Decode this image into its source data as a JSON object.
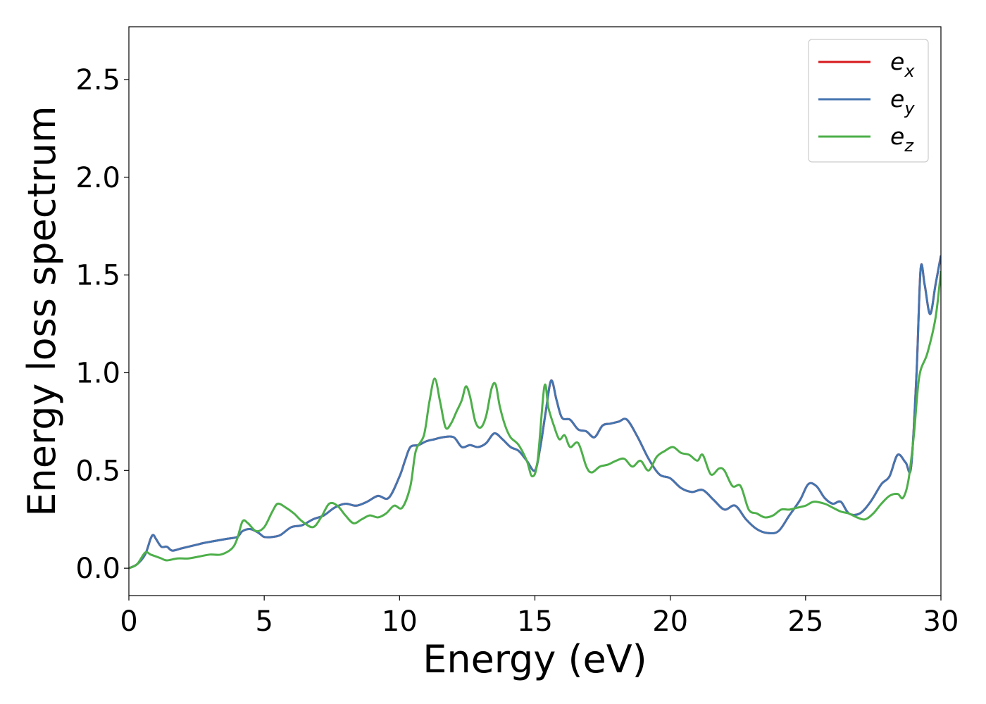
{
  "chart_data": {
    "type": "line",
    "title": "",
    "xlabel": "Energy (eV)",
    "ylabel": "Energy loss spectrum",
    "xlim": [
      0,
      30
    ],
    "ylim": [
      -0.14,
      2.77
    ],
    "xticks": [
      0,
      5,
      10,
      15,
      20,
      25,
      30
    ],
    "xtick_labels": [
      "0",
      "5",
      "10",
      "15",
      "20",
      "25",
      "30"
    ],
    "yticks": [
      0.0,
      0.5,
      1.0,
      1.5,
      2.0,
      2.5
    ],
    "ytick_labels": [
      "0.0",
      "0.5",
      "1.0",
      "1.5",
      "2.0",
      "2.5"
    ],
    "grid": false,
    "legend_position": "top-right",
    "legend": [
      {
        "main": "e",
        "sub": "x",
        "color": "#d7191c"
      },
      {
        "main": "e",
        "sub": "y",
        "color": "#4475b0"
      },
      {
        "main": "e",
        "sub": "z",
        "color": "#4daf4a"
      }
    ],
    "series": [
      {
        "name": "e_x",
        "color": "#d7191c",
        "x": [
          0,
          0.3,
          0.6,
          0.8,
          0.9,
          1.0,
          1.2,
          1.4,
          1.6,
          1.9,
          2.2,
          2.5,
          2.8,
          3.2,
          3.6,
          4.0,
          4.2,
          4.5,
          4.8,
          5.0,
          5.3,
          5.6,
          6.0,
          6.4,
          6.8,
          7.2,
          7.6,
          8.0,
          8.4,
          8.8,
          9.2,
          9.6,
          10.0,
          10.2,
          10.4,
          10.7,
          11.0,
          11.3,
          11.6,
          12.0,
          12.3,
          12.6,
          12.9,
          13.2,
          13.5,
          13.8,
          14.1,
          14.4,
          14.7,
          15.0,
          15.2,
          15.4,
          15.6,
          15.8,
          16.0,
          16.3,
          16.6,
          16.9,
          17.2,
          17.5,
          17.8,
          18.1,
          18.4,
          18.8,
          19.2,
          19.6,
          20.0,
          20.4,
          20.8,
          21.2,
          21.6,
          22.0,
          22.4,
          22.8,
          23.2,
          23.6,
          24.0,
          24.4,
          24.8,
          25.1,
          25.4,
          25.7,
          26.0,
          26.3,
          26.6,
          27.0,
          27.4,
          27.8,
          28.1,
          28.4,
          28.7,
          28.9,
          29.1,
          29.25,
          29.4,
          29.6,
          29.8,
          30.0
        ],
        "y": [
          0.0,
          0.02,
          0.07,
          0.15,
          0.17,
          0.15,
          0.11,
          0.11,
          0.09,
          0.1,
          0.11,
          0.12,
          0.13,
          0.14,
          0.15,
          0.16,
          0.19,
          0.2,
          0.18,
          0.16,
          0.16,
          0.17,
          0.21,
          0.22,
          0.25,
          0.27,
          0.31,
          0.33,
          0.32,
          0.34,
          0.37,
          0.36,
          0.47,
          0.55,
          0.62,
          0.63,
          0.65,
          0.66,
          0.67,
          0.67,
          0.62,
          0.63,
          0.62,
          0.64,
          0.69,
          0.66,
          0.62,
          0.6,
          0.55,
          0.5,
          0.62,
          0.8,
          0.96,
          0.86,
          0.77,
          0.76,
          0.71,
          0.7,
          0.67,
          0.73,
          0.74,
          0.75,
          0.76,
          0.67,
          0.56,
          0.48,
          0.46,
          0.41,
          0.39,
          0.4,
          0.35,
          0.3,
          0.32,
          0.25,
          0.2,
          0.18,
          0.19,
          0.27,
          0.35,
          0.43,
          0.42,
          0.36,
          0.33,
          0.34,
          0.28,
          0.28,
          0.34,
          0.43,
          0.47,
          0.58,
          0.54,
          0.52,
          1.0,
          1.53,
          1.45,
          1.3,
          1.45,
          1.6
        ]
      },
      {
        "name": "e_y",
        "color": "#4475b0",
        "x": [
          0,
          0.3,
          0.6,
          0.8,
          0.9,
          1.0,
          1.2,
          1.4,
          1.6,
          1.9,
          2.2,
          2.5,
          2.8,
          3.2,
          3.6,
          4.0,
          4.2,
          4.5,
          4.8,
          5.0,
          5.3,
          5.6,
          6.0,
          6.4,
          6.8,
          7.2,
          7.6,
          8.0,
          8.4,
          8.8,
          9.2,
          9.6,
          10.0,
          10.2,
          10.4,
          10.7,
          11.0,
          11.3,
          11.6,
          12.0,
          12.3,
          12.6,
          12.9,
          13.2,
          13.5,
          13.8,
          14.1,
          14.4,
          14.7,
          15.0,
          15.2,
          15.4,
          15.6,
          15.8,
          16.0,
          16.3,
          16.6,
          16.9,
          17.2,
          17.5,
          17.8,
          18.1,
          18.4,
          18.8,
          19.2,
          19.6,
          20.0,
          20.4,
          20.8,
          21.2,
          21.6,
          22.0,
          22.4,
          22.8,
          23.2,
          23.6,
          24.0,
          24.4,
          24.8,
          25.1,
          25.4,
          25.7,
          26.0,
          26.3,
          26.6,
          27.0,
          27.4,
          27.8,
          28.1,
          28.4,
          28.7,
          28.9,
          29.1,
          29.25,
          29.4,
          29.6,
          29.8,
          30.0
        ],
        "y": [
          0.0,
          0.02,
          0.07,
          0.15,
          0.17,
          0.15,
          0.11,
          0.11,
          0.09,
          0.1,
          0.11,
          0.12,
          0.13,
          0.14,
          0.15,
          0.16,
          0.19,
          0.2,
          0.18,
          0.16,
          0.16,
          0.17,
          0.21,
          0.22,
          0.25,
          0.27,
          0.31,
          0.33,
          0.32,
          0.34,
          0.37,
          0.36,
          0.47,
          0.55,
          0.62,
          0.63,
          0.65,
          0.66,
          0.67,
          0.67,
          0.62,
          0.63,
          0.62,
          0.64,
          0.69,
          0.66,
          0.62,
          0.6,
          0.55,
          0.5,
          0.62,
          0.8,
          0.96,
          0.86,
          0.77,
          0.76,
          0.71,
          0.7,
          0.67,
          0.73,
          0.74,
          0.75,
          0.76,
          0.67,
          0.56,
          0.48,
          0.46,
          0.41,
          0.39,
          0.4,
          0.35,
          0.3,
          0.32,
          0.25,
          0.2,
          0.18,
          0.19,
          0.27,
          0.35,
          0.43,
          0.42,
          0.36,
          0.33,
          0.34,
          0.28,
          0.28,
          0.34,
          0.43,
          0.47,
          0.58,
          0.54,
          0.52,
          1.0,
          1.53,
          1.45,
          1.3,
          1.45,
          1.6
        ]
      },
      {
        "name": "e_z",
        "color": "#4daf4a",
        "x": [
          0,
          0.3,
          0.6,
          0.8,
          1.0,
          1.2,
          1.4,
          1.8,
          2.2,
          2.6,
          3.0,
          3.4,
          3.8,
          4.0,
          4.2,
          4.4,
          4.7,
          5.0,
          5.3,
          5.5,
          5.8,
          6.1,
          6.4,
          6.8,
          7.1,
          7.4,
          7.7,
          8.0,
          8.3,
          8.6,
          8.9,
          9.2,
          9.5,
          9.8,
          10.1,
          10.4,
          10.6,
          10.9,
          11.1,
          11.3,
          11.5,
          11.7,
          11.9,
          12.1,
          12.3,
          12.45,
          12.6,
          12.8,
          13.0,
          13.2,
          13.4,
          13.55,
          13.7,
          13.9,
          14.1,
          14.4,
          14.7,
          14.9,
          15.1,
          15.35,
          15.5,
          15.7,
          15.9,
          16.1,
          16.3,
          16.6,
          16.9,
          17.1,
          17.4,
          17.7,
          18.0,
          18.3,
          18.6,
          18.9,
          19.2,
          19.5,
          19.8,
          20.1,
          20.4,
          20.7,
          21.0,
          21.2,
          21.5,
          21.8,
          22.0,
          22.3,
          22.6,
          22.9,
          23.2,
          23.5,
          23.8,
          24.1,
          24.4,
          24.7,
          25.0,
          25.3,
          25.7,
          26.0,
          26.3,
          26.6,
          26.9,
          27.2,
          27.5,
          27.8,
          28.1,
          28.4,
          28.6,
          28.8,
          29.0,
          29.2,
          29.5,
          29.8,
          30.0
        ],
        "y": [
          0.0,
          0.02,
          0.08,
          0.07,
          0.06,
          0.05,
          0.04,
          0.05,
          0.05,
          0.06,
          0.07,
          0.07,
          0.1,
          0.15,
          0.24,
          0.23,
          0.19,
          0.21,
          0.29,
          0.33,
          0.31,
          0.28,
          0.24,
          0.21,
          0.26,
          0.33,
          0.32,
          0.27,
          0.23,
          0.25,
          0.27,
          0.26,
          0.28,
          0.32,
          0.31,
          0.42,
          0.6,
          0.68,
          0.85,
          0.97,
          0.85,
          0.72,
          0.74,
          0.8,
          0.86,
          0.93,
          0.88,
          0.75,
          0.72,
          0.78,
          0.92,
          0.94,
          0.83,
          0.73,
          0.67,
          0.63,
          0.55,
          0.47,
          0.55,
          0.93,
          0.82,
          0.73,
          0.66,
          0.68,
          0.62,
          0.64,
          0.52,
          0.49,
          0.52,
          0.53,
          0.55,
          0.56,
          0.52,
          0.55,
          0.5,
          0.57,
          0.6,
          0.62,
          0.59,
          0.58,
          0.55,
          0.58,
          0.48,
          0.51,
          0.5,
          0.42,
          0.42,
          0.3,
          0.28,
          0.26,
          0.27,
          0.3,
          0.3,
          0.31,
          0.32,
          0.34,
          0.33,
          0.31,
          0.29,
          0.28,
          0.26,
          0.25,
          0.28,
          0.33,
          0.37,
          0.38,
          0.36,
          0.45,
          0.68,
          0.98,
          1.1,
          1.28,
          1.52
        ]
      }
    ]
  }
}
